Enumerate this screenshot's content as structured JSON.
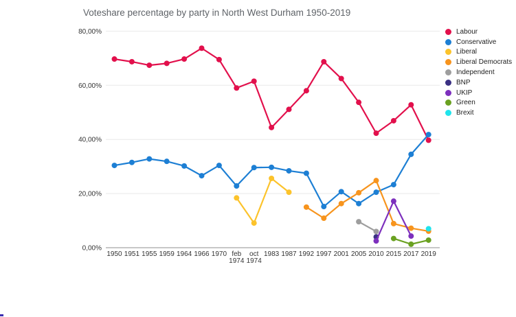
{
  "chart_data": {
    "type": "line",
    "title": "Voteshare percentage by party in North West Durham 1950-2019",
    "xlabel": "",
    "ylabel": "",
    "ylim": [
      0,
      80
    ],
    "grid": true,
    "legend_position": "right",
    "y_ticks": [
      {
        "value": 80,
        "label": "80,00%"
      },
      {
        "value": 60,
        "label": "60,00%"
      },
      {
        "value": 40,
        "label": "40,00%"
      },
      {
        "value": 20,
        "label": "20,00%"
      },
      {
        "value": 0,
        "label": "0,00%"
      }
    ],
    "categories": [
      "1950",
      "1951",
      "1955",
      "1959",
      "1964",
      "1966",
      "1970",
      "feb 1974",
      "oct 1974",
      "1983",
      "1987",
      "1992",
      "1997",
      "2001",
      "2005",
      "2010",
      "2015",
      "2017",
      "2019"
    ],
    "series": [
      {
        "name": "Labour",
        "color": "#e2104c",
        "values": [
          69.7,
          68.7,
          67.4,
          68.1,
          69.7,
          73.7,
          69.5,
          59.0,
          61.5,
          44.4,
          51.1,
          58.0,
          68.7,
          62.5,
          53.7,
          42.3,
          46.9,
          52.8,
          39.7
        ]
      },
      {
        "name": "Conservative",
        "color": "#1d7fd4",
        "values": [
          30.4,
          31.5,
          32.8,
          31.9,
          30.2,
          26.6,
          30.4,
          22.8,
          29.6,
          29.7,
          28.4,
          27.5,
          15.2,
          20.7,
          16.3,
          20.5,
          23.3,
          34.5,
          41.8
        ]
      },
      {
        "name": "Liberal",
        "color": "#fcc32b",
        "values": [
          null,
          null,
          null,
          null,
          null,
          null,
          null,
          18.4,
          9.1,
          25.6,
          20.5,
          null,
          null,
          null,
          null,
          null,
          null,
          null,
          null
        ]
      },
      {
        "name": "Liberal Democrats",
        "color": "#f7941d",
        "values": [
          null,
          null,
          null,
          null,
          null,
          null,
          null,
          null,
          null,
          null,
          null,
          15.0,
          10.9,
          16.3,
          20.3,
          24.8,
          8.9,
          7.2,
          6.1
        ]
      },
      {
        "name": "Independent",
        "color": "#9e9e9e",
        "values": [
          null,
          null,
          null,
          null,
          null,
          null,
          null,
          null,
          null,
          null,
          null,
          null,
          null,
          null,
          9.6,
          6.0,
          null,
          null,
          null
        ]
      },
      {
        "name": "BNP",
        "color": "#3b3183",
        "values": [
          null,
          null,
          null,
          null,
          null,
          null,
          null,
          null,
          null,
          null,
          null,
          null,
          null,
          null,
          null,
          4.0,
          null,
          null,
          null
        ]
      },
      {
        "name": "UKIP",
        "color": "#7d30bd",
        "values": [
          null,
          null,
          null,
          null,
          null,
          null,
          null,
          null,
          null,
          null,
          null,
          null,
          null,
          null,
          null,
          2.5,
          17.2,
          4.3,
          null
        ]
      },
      {
        "name": "Green",
        "color": "#6aa121",
        "values": [
          null,
          null,
          null,
          null,
          null,
          null,
          null,
          null,
          null,
          null,
          null,
          null,
          null,
          null,
          null,
          null,
          3.4,
          1.3,
          2.8
        ]
      },
      {
        "name": "Brexit",
        "color": "#20e4ec",
        "values": [
          null,
          null,
          null,
          null,
          null,
          null,
          null,
          null,
          null,
          null,
          null,
          null,
          null,
          null,
          null,
          null,
          null,
          null,
          7.0
        ]
      }
    ]
  }
}
